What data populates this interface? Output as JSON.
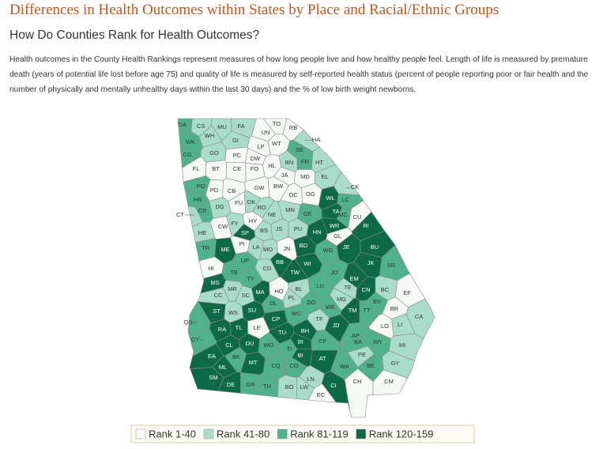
{
  "header": {
    "title": "Differences in Health Outcomes within States by Place and Racial/Ethnic Groups",
    "subtitle": "How Do Counties Rank for Health Outcomes?",
    "description": "Health outcomes in the County Health Rankings represent measures of how long people live and how healthy people feel. Length of life is measured by premature death (years of potential life lost before age 75) and quality of life is measured by self-reported health status (percent of people reporting poor or fair health and the number of physically and mentally unhealthy days within the last 30 days) and the % of low birth weight newborns."
  },
  "legend": {
    "items": [
      {
        "label": "Rank 1-40",
        "color": "#f6f9f6"
      },
      {
        "label": "Rank 41-80",
        "color": "#a9dccb"
      },
      {
        "label": "Rank 81-119",
        "color": "#4fb28d"
      },
      {
        "label": "Rank 120-159",
        "color": "#0c6a48"
      }
    ]
  },
  "counties": [
    {
      "label": "DA",
      "rank": 2
    },
    {
      "label": "CS",
      "rank": 1
    },
    {
      "label": "MU",
      "rank": 1
    },
    {
      "label": "WH",
      "rank": 1
    },
    {
      "label": "FA",
      "rank": 1
    },
    {
      "label": "TO",
      "rank": 0
    },
    {
      "label": "UN",
      "rank": 0
    },
    {
      "label": "RB",
      "rank": 0
    },
    {
      "label": "WK",
      "rank": 2
    },
    {
      "label": "GI",
      "rank": 1
    },
    {
      "label": "HA",
      "rank": 1
    },
    {
      "label": "WT",
      "rank": 0
    },
    {
      "label": "LP",
      "rank": 0
    },
    {
      "label": "CG",
      "rank": 2
    },
    {
      "label": "GO",
      "rank": 1
    },
    {
      "label": "PC",
      "rank": 0
    },
    {
      "label": "DW",
      "rank": 0
    },
    {
      "label": "SE",
      "rank": 2
    },
    {
      "label": "HL",
      "rank": 0
    },
    {
      "label": "BN",
      "rank": 1
    },
    {
      "label": "FR",
      "rank": 2
    },
    {
      "label": "HT",
      "rank": 1
    },
    {
      "label": "FL",
      "rank": 0
    },
    {
      "label": "BT",
      "rank": 0
    },
    {
      "label": "CE",
      "rank": 0
    },
    {
      "label": "FO",
      "rank": 0
    },
    {
      "label": "JA",
      "rank": 0
    },
    {
      "label": "MD",
      "rank": 0
    },
    {
      "label": "EL",
      "rank": 1
    },
    {
      "label": "PO",
      "rank": 2
    },
    {
      "label": "PD",
      "rank": 0
    },
    {
      "label": "CB",
      "rank": 0
    },
    {
      "label": "GW",
      "rank": 0
    },
    {
      "label": "BW",
      "rank": 0
    },
    {
      "label": "OC",
      "rank": 0
    },
    {
      "label": "OG",
      "rank": 0
    },
    {
      "label": "CK",
      "rank": 1
    },
    {
      "label": "HR",
      "rank": 2
    },
    {
      "label": "DG",
      "rank": 1
    },
    {
      "label": "FU",
      "rank": 0
    },
    {
      "label": "DK",
      "rank": 1
    },
    {
      "label": "RO",
      "rank": 1
    },
    {
      "label": "NE",
      "rank": 1
    },
    {
      "label": "MN",
      "rank": 1
    },
    {
      "label": "WL",
      "rank": 3
    },
    {
      "label": "LC",
      "rank": 2
    },
    {
      "label": "CT",
      "rank": 1
    },
    {
      "label": "CR",
      "rank": 2
    },
    {
      "label": "GE",
      "rank": 2
    },
    {
      "label": "TA",
      "rank": 3
    },
    {
      "label": "MC",
      "rank": 2
    },
    {
      "label": "CU",
      "rank": 0
    },
    {
      "label": "CW",
      "rank": 0
    },
    {
      "label": "FY",
      "rank": 1
    },
    {
      "label": "HY",
      "rank": 0
    },
    {
      "label": "BS",
      "rank": 1
    },
    {
      "label": "JS",
      "rank": 1
    },
    {
      "label": "PU",
      "rank": 1
    },
    {
      "label": "HN",
      "rank": 3
    },
    {
      "label": "WR",
      "rank": 3
    },
    {
      "label": "GL",
      "rank": 0
    },
    {
      "label": "RI",
      "rank": 3
    },
    {
      "label": "HE",
      "rank": 1
    },
    {
      "label": "SP",
      "rank": 3
    },
    {
      "label": "TR",
      "rank": 2
    },
    {
      "label": "ME",
      "rank": 3
    },
    {
      "label": "PI",
      "rank": 0
    },
    {
      "label": "LA",
      "rank": 1
    },
    {
      "label": "MO",
      "rank": 1
    },
    {
      "label": "JN",
      "rank": 0
    },
    {
      "label": "BD",
      "rank": 3
    },
    {
      "label": "JE",
      "rank": 3
    },
    {
      "label": "BU",
      "rank": 3
    },
    {
      "label": "WG",
      "rank": 2
    },
    {
      "label": "UP",
      "rank": 2
    },
    {
      "label": "BB",
      "rank": 3
    },
    {
      "label": "WI",
      "rank": 3
    },
    {
      "label": "CD",
      "rank": 1
    },
    {
      "label": "JK",
      "rank": 3
    },
    {
      "label": "SR",
      "rank": 2
    },
    {
      "label": "HI",
      "rank": 0
    },
    {
      "label": "TB",
      "rank": 2
    },
    {
      "label": "TW",
      "rank": 3
    },
    {
      "label": "JO",
      "rank": 2
    },
    {
      "label": "TY",
      "rank": 2
    },
    {
      "label": "EM",
      "rank": 3
    },
    {
      "label": "MS",
      "rank": 3
    },
    {
      "label": "MR",
      "rank": 1
    },
    {
      "label": "SC",
      "rank": 1
    },
    {
      "label": "MA",
      "rank": 3
    },
    {
      "label": "HO",
      "rank": 0
    },
    {
      "label": "BL",
      "rank": 1
    },
    {
      "label": "LU",
      "rank": 2
    },
    {
      "label": "TE",
      "rank": 1
    },
    {
      "label": "CN",
      "rank": 3
    },
    {
      "label": "BC",
      "rank": 1
    },
    {
      "label": "EF",
      "rank": 0
    },
    {
      "label": "CC",
      "rank": 1
    },
    {
      "label": "PL",
      "rank": 1
    },
    {
      "label": "DO",
      "rank": 2
    },
    {
      "label": "MG",
      "rank": 1
    },
    {
      "label": "EV",
      "rank": 2
    },
    {
      "label": "BR",
      "rank": 0
    },
    {
      "label": "DL",
      "rank": 2
    },
    {
      "label": "WE",
      "rank": 2
    },
    {
      "label": "TF",
      "rank": 1
    },
    {
      "label": "TM",
      "rank": 3
    },
    {
      "label": "TT",
      "rank": 2
    },
    {
      "label": "ST",
      "rank": 3
    },
    {
      "label": "WS",
      "rank": 1
    },
    {
      "label": "SU",
      "rank": 3
    },
    {
      "label": "WC",
      "rank": 2
    },
    {
      "label": "LO",
      "rank": 0
    },
    {
      "label": "LI",
      "rank": 1
    },
    {
      "label": "CA",
      "rank": 1
    },
    {
      "label": "QU",
      "rank": 2
    },
    {
      "label": "RA",
      "rank": 3
    },
    {
      "label": "TL",
      "rank": 3
    },
    {
      "label": "LE",
      "rank": 0
    },
    {
      "label": "CP",
      "rank": 3
    },
    {
      "label": "JD",
      "rank": 3
    },
    {
      "label": "AP",
      "rank": 2
    },
    {
      "label": "TU",
      "rank": 3
    },
    {
      "label": "BH",
      "rank": 3
    },
    {
      "label": "WY",
      "rank": 2
    },
    {
      "label": "MI",
      "rank": 1
    },
    {
      "label": "CY",
      "rank": 2
    },
    {
      "label": "IR",
      "rank": 3
    },
    {
      "label": "CL",
      "rank": 3
    },
    {
      "label": "DU",
      "rank": 3
    },
    {
      "label": "WO",
      "rank": 2
    },
    {
      "label": "TI",
      "rank": 2
    },
    {
      "label": "CF",
      "rank": 2
    },
    {
      "label": "BA",
      "rank": 2
    },
    {
      "label": "PE",
      "rank": 1
    },
    {
      "label": "EA",
      "rank": 3
    },
    {
      "label": "BK",
      "rank": 2
    },
    {
      "label": "MT",
      "rank": 3
    },
    {
      "label": "BI",
      "rank": 3
    },
    {
      "label": "AT",
      "rank": 3
    },
    {
      "label": "GY",
      "rank": 1
    },
    {
      "label": "ML",
      "rank": 3
    },
    {
      "label": "CQ",
      "rank": 2
    },
    {
      "label": "CO",
      "rank": 2
    },
    {
      "label": "WA",
      "rank": 2
    },
    {
      "label": "BE",
      "rank": 2
    },
    {
      "label": "LN",
      "rank": 1
    },
    {
      "label": "SM",
      "rank": 3
    },
    {
      "label": "DE",
      "rank": 3
    },
    {
      "label": "GR",
      "rank": 2
    },
    {
      "label": "TH",
      "rank": 2
    },
    {
      "label": "BO",
      "rank": 1
    },
    {
      "label": "LW",
      "rank": 1
    },
    {
      "label": "CI",
      "rank": 3
    },
    {
      "label": "CH",
      "rank": 0
    },
    {
      "label": "CM",
      "rank": 0
    },
    {
      "label": "EC",
      "rank": 0
    }
  ]
}
